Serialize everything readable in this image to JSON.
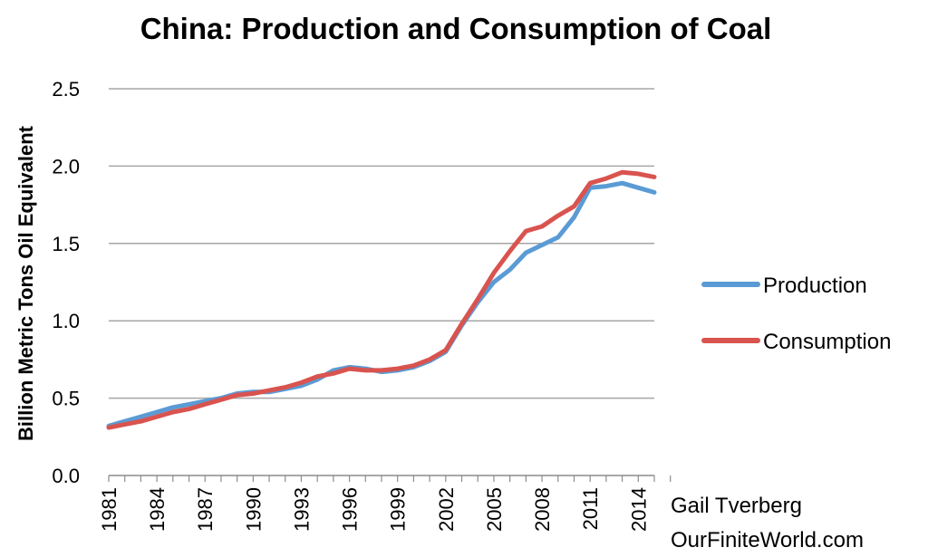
{
  "chart_data": {
    "type": "line",
    "title": "China: Production and Consumption of Coal",
    "ylabel": "Billion Metric Tons Oil Equivalent",
    "xlabel": "",
    "ylim": [
      0,
      2.5
    ],
    "y_ticks": [
      "0.0",
      "0.5",
      "1.0",
      "1.5",
      "2.0",
      "2.5"
    ],
    "x_ticks": [
      "1981",
      "1984",
      "1987",
      "1990",
      "1993",
      "1996",
      "1999",
      "2002",
      "2005",
      "2008",
      "2011",
      "2014"
    ],
    "grid": true,
    "legend_position": "right",
    "x": [
      1981,
      1982,
      1983,
      1984,
      1985,
      1986,
      1987,
      1988,
      1989,
      1990,
      1991,
      1992,
      1993,
      1994,
      1995,
      1996,
      1997,
      1998,
      1999,
      2000,
      2001,
      2002,
      2003,
      2004,
      2005,
      2006,
      2007,
      2008,
      2009,
      2010,
      2011,
      2012,
      2013,
      2014,
      2015
    ],
    "series": [
      {
        "name": "Production",
        "color": "#5b9bd5",
        "values": [
          0.32,
          0.35,
          0.38,
          0.41,
          0.44,
          0.46,
          0.48,
          0.5,
          0.53,
          0.54,
          0.54,
          0.56,
          0.58,
          0.62,
          0.68,
          0.7,
          0.69,
          0.67,
          0.68,
          0.7,
          0.74,
          0.8,
          0.97,
          1.12,
          1.25,
          1.33,
          1.44,
          1.49,
          1.54,
          1.67,
          1.86,
          1.87,
          1.89,
          1.86,
          1.83
        ]
      },
      {
        "name": "Consumption",
        "color": "#d9534f",
        "values": [
          0.31,
          0.33,
          0.35,
          0.38,
          0.41,
          0.43,
          0.46,
          0.49,
          0.52,
          0.53,
          0.55,
          0.57,
          0.6,
          0.64,
          0.66,
          0.69,
          0.68,
          0.68,
          0.69,
          0.71,
          0.75,
          0.81,
          0.98,
          1.14,
          1.31,
          1.45,
          1.58,
          1.61,
          1.68,
          1.74,
          1.89,
          1.92,
          1.96,
          1.95,
          1.93
        ]
      }
    ]
  },
  "credit": {
    "line1": "Gail Tverberg",
    "line2": "OurFiniteWorld.com"
  }
}
